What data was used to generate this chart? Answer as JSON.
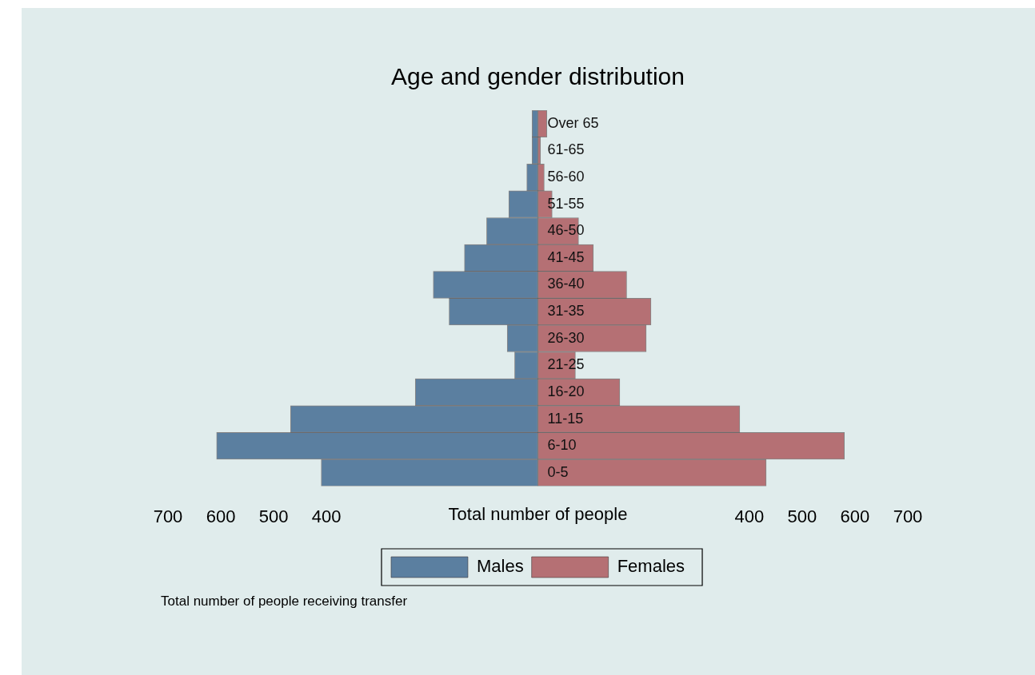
{
  "chart_data": {
    "type": "bar",
    "orientation": "horizontal",
    "stacked": true,
    "title": "Age and gender distribution",
    "xlabel": "Total number of people",
    "categories": [
      "Over 65",
      "61-65",
      "56-60",
      "51-55",
      "46-50",
      "41-45",
      "36-40",
      "31-35",
      "26-30",
      "21-25",
      "16-20",
      "11-15",
      "6-10",
      "0-5"
    ],
    "series": [
      {
        "name": "Males",
        "color": "#5b7fa0",
        "values": [
          -11,
          -11,
          -21,
          -55,
          -97,
          -139,
          -198,
          -168,
          -58,
          -44,
          -232,
          -468,
          -608,
          -410
        ]
      },
      {
        "name": "Females",
        "color": "#b57074",
        "values": [
          17,
          5,
          12,
          27,
          77,
          105,
          168,
          214,
          205,
          71,
          155,
          382,
          580,
          432
        ]
      }
    ],
    "xlim": [
      -700,
      700
    ],
    "xticks": [
      {
        "value": -700,
        "label": "700"
      },
      {
        "value": -600,
        "label": "600"
      },
      {
        "value": -500,
        "label": "500"
      },
      {
        "value": -400,
        "label": "400"
      },
      {
        "value": 400,
        "label": "400"
      },
      {
        "value": 500,
        "label": "500"
      },
      {
        "value": 600,
        "label": "600"
      },
      {
        "value": 700,
        "label": "700"
      }
    ],
    "grid": false,
    "legend": "bottom",
    "annotations": [
      "Total number of people receiving transfer"
    ]
  }
}
